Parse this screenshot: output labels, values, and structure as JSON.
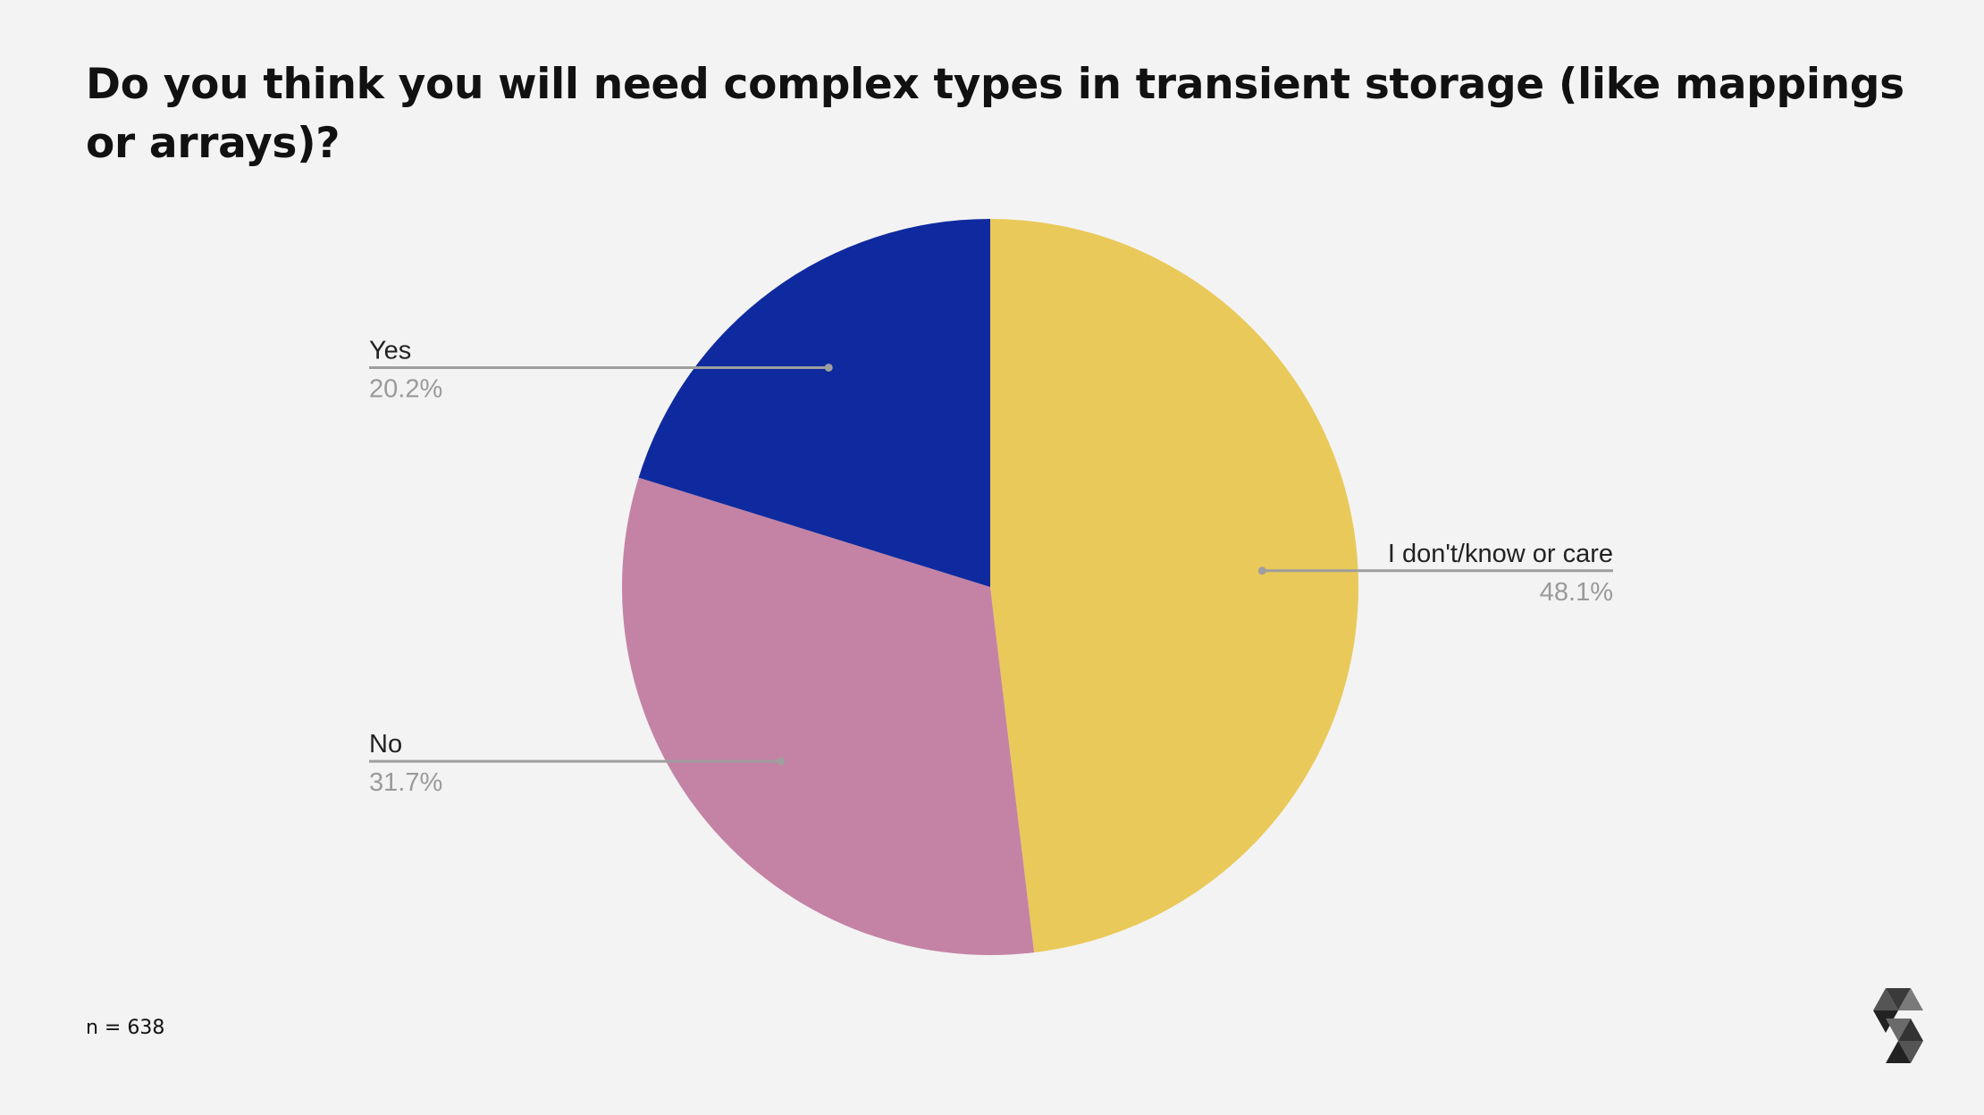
{
  "title": "Do you think you will need complex types in transient storage (like mappings or arrays)?",
  "footnote": "n = 638",
  "chart_data": {
    "type": "pie",
    "title": "Do you think you will need complex types in transient storage (like mappings or arrays)?",
    "start_angle_deg": 0,
    "direction": "clockwise",
    "slices": [
      {
        "label": "I don't/know or care",
        "value": 48.1,
        "value_label": "48.1%",
        "color": "#e9c95a",
        "legend_side": "right"
      },
      {
        "label": "No",
        "value": 31.7,
        "value_label": "31.7%",
        "color": "#c483a5",
        "legend_side": "left"
      },
      {
        "label": "Yes",
        "value": 20.2,
        "value_label": "20.2%",
        "color": "#0f2a9e",
        "legend_side": "left"
      }
    ],
    "legend_placement": "callouts",
    "grid": false
  },
  "colors": {
    "background": "#f3f3f3",
    "leader_line": "#9e9e9e",
    "label_text": "#222222",
    "value_text": "#9a9a9a"
  },
  "logo_icon": "solidity-logo-icon"
}
